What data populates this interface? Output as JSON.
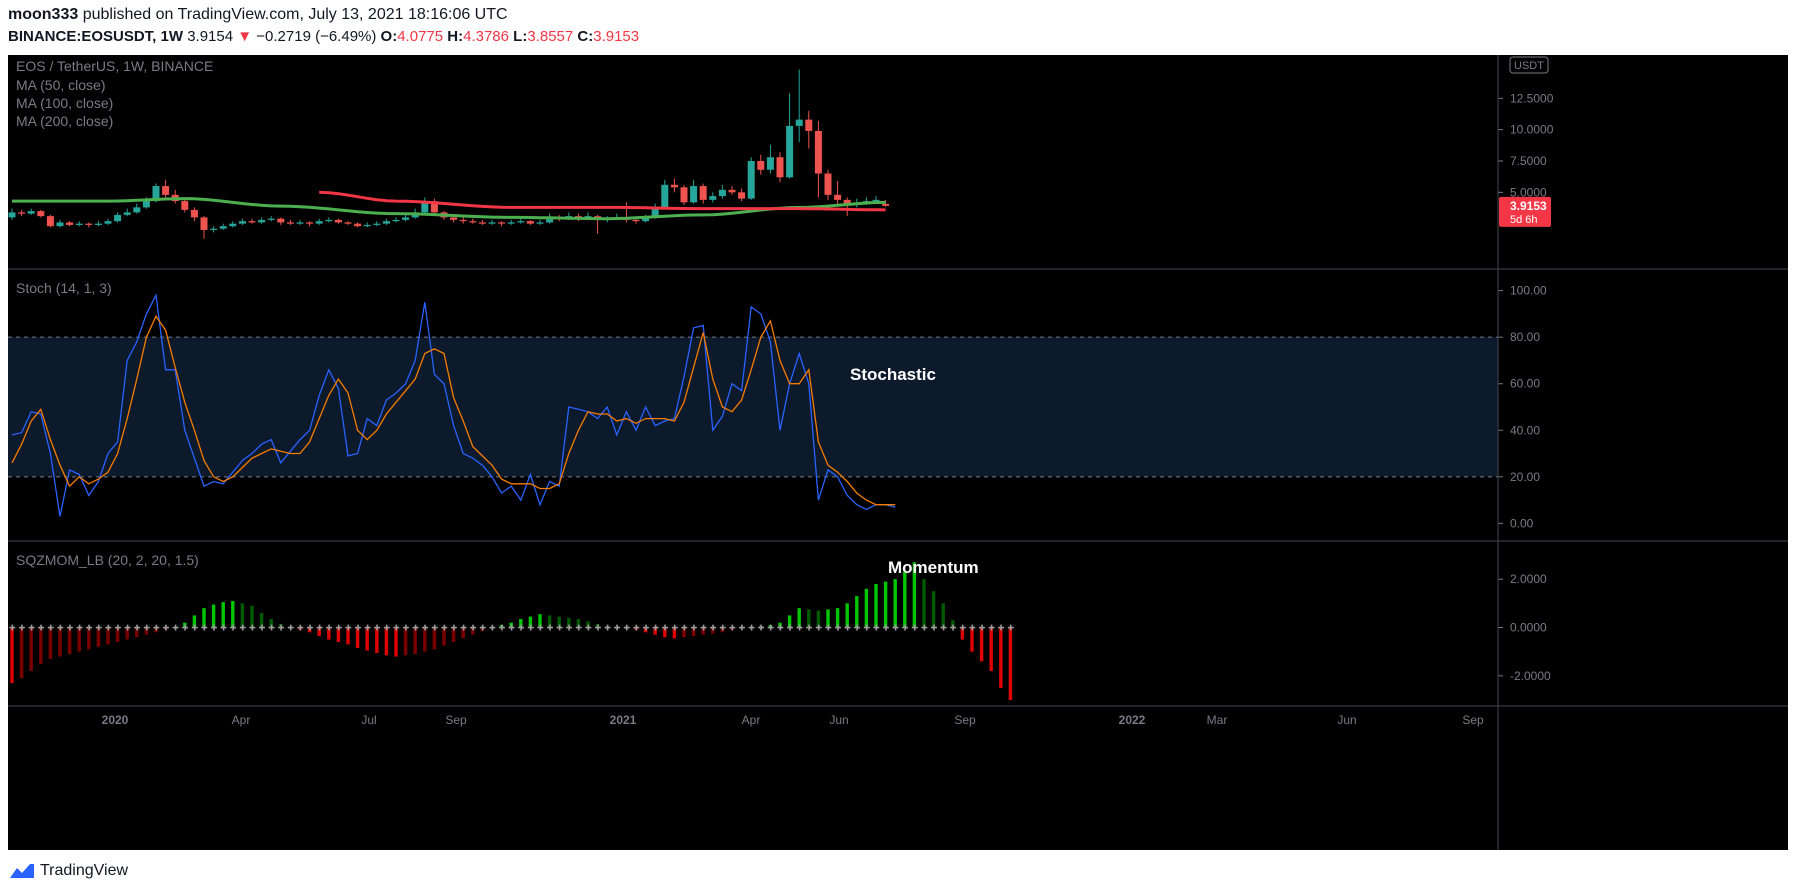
{
  "header": {
    "author": "moon333",
    "published_text": "published on TradingView.com, July 13, 2021 18:16:06 UTC",
    "symbol": "BINANCE:EOSUSDT, 1W",
    "last": "3.9154",
    "change_arrow": "▼",
    "change": "−0.2719 (−6.49%)",
    "o_label": "O:",
    "o": "4.0775",
    "h_label": "H:",
    "h": "4.3786",
    "l_label": "L:",
    "l": "3.8557",
    "c_label": "C:",
    "c": "3.9153"
  },
  "footer": {
    "brand": "TradingView",
    "logo_icon": "tradingview-logo-icon"
  },
  "colors": {
    "bg": "#000000",
    "up": "#26a69a",
    "down": "#ef5350",
    "ma_green": "#4caf50",
    "ma_red": "#f23645",
    "stoch_k": "#2962ff",
    "stoch_d": "#f57c00",
    "mom_bright_green": "#00c800",
    "mom_dark_green": "#005a00",
    "mom_bright_red": "#e00000",
    "mom_dark_red": "#7a0000"
  },
  "chart_data": [
    {
      "type": "candlestick",
      "title": "EOS / TetherUS, 1W, BINANCE",
      "legend": [
        "MA (50, close)",
        "MA (100, close)",
        "MA (200, close)"
      ],
      "currency_badge": "USDT",
      "ylim": [
        0,
        15
      ],
      "y_ticks": [
        "12.5000",
        "10.0000",
        "7.5000",
        "5.0000"
      ],
      "price_label": "3.9153",
      "countdown_label": "5d 6h",
      "candles": [
        [
          3.0,
          3.4,
          3.7,
          2.8
        ],
        [
          3.4,
          3.3,
          3.6,
          3.1
        ],
        [
          3.3,
          3.5,
          3.7,
          3.2
        ],
        [
          3.5,
          3.1,
          3.6,
          3.0
        ],
        [
          3.1,
          2.3,
          3.2,
          2.2
        ],
        [
          2.3,
          2.6,
          2.8,
          2.2
        ],
        [
          2.6,
          2.4,
          2.7,
          2.3
        ],
        [
          2.4,
          2.5,
          2.7,
          2.3
        ],
        [
          2.5,
          2.4,
          2.6,
          2.2
        ],
        [
          2.4,
          2.5,
          2.7,
          2.3
        ],
        [
          2.5,
          2.7,
          2.9,
          2.4
        ],
        [
          2.7,
          3.2,
          3.4,
          2.6
        ],
        [
          3.2,
          3.4,
          3.7,
          3.1
        ],
        [
          3.4,
          3.8,
          4.1,
          3.3
        ],
        [
          3.8,
          4.3,
          4.6,
          3.7
        ],
        [
          4.3,
          5.5,
          5.7,
          4.2
        ],
        [
          5.5,
          4.8,
          6.0,
          4.5
        ],
        [
          4.8,
          4.3,
          5.2,
          4.1
        ],
        [
          4.3,
          3.6,
          4.6,
          3.4
        ],
        [
          3.6,
          3.0,
          3.8,
          2.7
        ],
        [
          3.0,
          2.0,
          3.1,
          1.3
        ],
        [
          2.0,
          2.1,
          2.3,
          1.8
        ],
        [
          2.1,
          2.3,
          2.5,
          2.0
        ],
        [
          2.3,
          2.5,
          2.7,
          2.2
        ],
        [
          2.5,
          2.7,
          2.9,
          2.4
        ],
        [
          2.7,
          2.6,
          2.9,
          2.5
        ],
        [
          2.6,
          2.8,
          3.0,
          2.5
        ],
        [
          2.8,
          2.9,
          3.1,
          2.7
        ],
        [
          2.9,
          2.6,
          3.0,
          2.4
        ],
        [
          2.6,
          2.5,
          2.8,
          2.4
        ],
        [
          2.5,
          2.6,
          2.8,
          2.4
        ],
        [
          2.6,
          2.5,
          2.7,
          2.3
        ],
        [
          2.5,
          2.7,
          2.9,
          2.4
        ],
        [
          2.7,
          2.8,
          3.0,
          2.6
        ],
        [
          2.8,
          2.6,
          2.9,
          2.5
        ],
        [
          2.6,
          2.5,
          2.7,
          2.4
        ],
        [
          2.5,
          2.3,
          2.6,
          2.2
        ],
        [
          2.3,
          2.4,
          2.6,
          2.2
        ],
        [
          2.4,
          2.5,
          2.7,
          2.3
        ],
        [
          2.5,
          2.7,
          2.9,
          2.4
        ],
        [
          2.7,
          2.8,
          3.0,
          2.6
        ],
        [
          2.8,
          3.0,
          3.3,
          2.7
        ],
        [
          3.0,
          3.4,
          3.7,
          2.9
        ],
        [
          3.4,
          4.3,
          4.6,
          3.3
        ],
        [
          4.3,
          3.4,
          4.5,
          3.1
        ],
        [
          3.4,
          3.0,
          3.5,
          2.8
        ],
        [
          3.0,
          2.8,
          3.2,
          2.6
        ],
        [
          2.8,
          2.7,
          3.0,
          2.5
        ],
        [
          2.7,
          2.6,
          2.9,
          2.5
        ],
        [
          2.6,
          2.5,
          2.8,
          2.4
        ],
        [
          2.5,
          2.6,
          2.8,
          2.4
        ],
        [
          2.6,
          2.5,
          2.7,
          2.3
        ],
        [
          2.5,
          2.6,
          2.8,
          2.4
        ],
        [
          2.6,
          2.7,
          2.9,
          2.5
        ],
        [
          2.7,
          2.5,
          2.8,
          2.4
        ],
        [
          2.5,
          2.6,
          2.8,
          2.4
        ],
        [
          2.6,
          3.0,
          3.3,
          2.5
        ],
        [
          3.0,
          2.9,
          3.2,
          2.7
        ],
        [
          2.9,
          3.1,
          3.4,
          2.8
        ],
        [
          3.1,
          2.9,
          3.3,
          2.7
        ],
        [
          2.9,
          3.1,
          3.4,
          2.8
        ],
        [
          3.1,
          2.8,
          3.2,
          1.7
        ],
        [
          2.8,
          2.9,
          3.1,
          2.6
        ],
        [
          2.9,
          3.0,
          3.3,
          2.8
        ],
        [
          3.0,
          2.8,
          4.2,
          2.6
        ],
        [
          2.8,
          2.7,
          3.0,
          2.5
        ],
        [
          2.7,
          3.0,
          3.2,
          2.6
        ],
        [
          3.0,
          3.8,
          4.1,
          2.9
        ],
        [
          3.8,
          5.6,
          6.0,
          3.7
        ],
        [
          5.6,
          5.4,
          6.1,
          5.0
        ],
        [
          5.4,
          4.2,
          5.6,
          4.0
        ],
        [
          4.2,
          5.5,
          6.0,
          4.1
        ],
        [
          5.5,
          4.4,
          5.7,
          4.1
        ],
        [
          4.4,
          4.7,
          5.0,
          4.2
        ],
        [
          4.7,
          5.2,
          5.6,
          4.5
        ],
        [
          5.2,
          5.0,
          5.5,
          4.8
        ],
        [
          5.0,
          4.5,
          5.3,
          4.3
        ],
        [
          4.5,
          7.5,
          7.8,
          4.4
        ],
        [
          7.5,
          6.8,
          8.0,
          6.4
        ],
        [
          6.8,
          7.8,
          8.8,
          6.5
        ],
        [
          7.8,
          6.2,
          8.2,
          5.8
        ],
        [
          6.2,
          10.3,
          12.9,
          6.1
        ],
        [
          10.3,
          10.8,
          14.8,
          9.0
        ],
        [
          10.8,
          9.9,
          11.5,
          8.5
        ],
        [
          9.9,
          6.5,
          10.7,
          4.6
        ],
        [
          6.5,
          4.8,
          6.8,
          4.4
        ],
        [
          4.8,
          4.4,
          5.9,
          4.0
        ],
        [
          4.4,
          4.0,
          4.6,
          3.1
        ],
        [
          4.0,
          4.1,
          4.5,
          3.8
        ],
        [
          4.1,
          4.3,
          4.6,
          4.0
        ],
        [
          4.3,
          4.4,
          4.7,
          4.1
        ],
        [
          4.08,
          3.92,
          4.38,
          3.86
        ]
      ],
      "ma_green_sample": [
        [
          0,
          4.3
        ],
        [
          10,
          4.3
        ],
        [
          18,
          4.5
        ],
        [
          28,
          3.9
        ],
        [
          40,
          3.3
        ],
        [
          52,
          3.0
        ],
        [
          62,
          2.9
        ],
        [
          72,
          3.2
        ],
        [
          82,
          3.8
        ],
        [
          91,
          4.2
        ]
      ],
      "ma_red_sample": [
        [
          32,
          5.0
        ],
        [
          40,
          4.3
        ],
        [
          52,
          3.8
        ],
        [
          62,
          3.8
        ],
        [
          72,
          3.7
        ],
        [
          82,
          3.7
        ],
        [
          91,
          3.6
        ]
      ]
    },
    {
      "type": "line",
      "title": "Stoch (14, 1, 3)",
      "annotation": "Stochastic",
      "ylim": [
        -5,
        105
      ],
      "y_ticks": [
        "100.00",
        "80.00",
        "60.00",
        "40.00",
        "20.00",
        "0.00"
      ],
      "bands": [
        20,
        80
      ],
      "series": [
        {
          "values": [
            38,
            39,
            48,
            47,
            30,
            3,
            23,
            21,
            12,
            18,
            30,
            35,
            70,
            78,
            90,
            98,
            66,
            66,
            40,
            28,
            16,
            18,
            17,
            22,
            27,
            30,
            34,
            36,
            26,
            31,
            36,
            40,
            55,
            66,
            58,
            29,
            30,
            45,
            42,
            53,
            56,
            60,
            70,
            95,
            64,
            60,
            42,
            30,
            28,
            25,
            20,
            13,
            16,
            10,
            21,
            8,
            18,
            16,
            50,
            49,
            48,
            45,
            50,
            38,
            48,
            40,
            50,
            42,
            44,
            45,
            63,
            84,
            85,
            40,
            46,
            60,
            57,
            93,
            90,
            78,
            40,
            60,
            73,
            60,
            10,
            23,
            20,
            12,
            8,
            6,
            8,
            8,
            7
          ]
        },
        {
          "values": [
            26,
            34,
            44,
            49,
            36,
            25,
            16,
            20,
            17,
            19,
            22,
            30,
            45,
            62,
            80,
            89,
            83,
            67,
            52,
            40,
            27,
            20,
            18,
            20,
            24,
            28,
            30,
            32,
            31,
            30,
            30,
            35,
            45,
            55,
            62,
            56,
            40,
            36,
            40,
            47,
            52,
            57,
            62,
            73,
            75,
            73,
            54,
            44,
            33,
            29,
            25,
            19,
            17,
            17,
            17,
            15,
            15,
            17,
            30,
            40,
            48,
            47,
            47,
            44,
            45,
            43,
            45,
            45,
            45,
            44,
            52,
            67,
            82,
            62,
            50,
            48,
            53,
            66,
            80,
            87,
            70,
            60,
            60,
            66,
            35,
            25,
            22,
            18,
            13,
            10,
            8,
            8,
            8
          ]
        }
      ]
    },
    {
      "type": "bar",
      "title": "SQZMOM_LB (20, 2, 20, 1.5)",
      "annotation": "Momentum",
      "ylim": [
        -3,
        3
      ],
      "y_ticks": [
        "2.0000",
        "0.0000",
        "-2.0000"
      ],
      "values": [
        -2.3,
        -2.1,
        -1.8,
        -1.5,
        -1.3,
        -1.2,
        -1.1,
        -1.0,
        -0.9,
        -0.8,
        -0.7,
        -0.6,
        -0.5,
        -0.4,
        -0.3,
        -0.2,
        -0.1,
        0.0,
        0.2,
        0.5,
        0.8,
        0.95,
        1.05,
        1.1,
        1.0,
        0.9,
        0.6,
        0.35,
        0.15,
        0.0,
        -0.1,
        -0.2,
        -0.35,
        -0.5,
        -0.6,
        -0.7,
        -0.85,
        -0.95,
        -1.05,
        -1.15,
        -1.2,
        -1.15,
        -1.1,
        -1.0,
        -0.9,
        -0.75,
        -0.6,
        -0.45,
        -0.3,
        -0.15,
        0.0,
        0.1,
        0.2,
        0.35,
        0.45,
        0.55,
        0.5,
        0.45,
        0.4,
        0.35,
        0.25,
        0.15,
        0.05,
        0.0,
        -0.05,
        -0.1,
        -0.2,
        -0.3,
        -0.4,
        -0.45,
        -0.4,
        -0.35,
        -0.3,
        -0.25,
        -0.2,
        -0.1,
        -0.05,
        0.0,
        0.05,
        0.1,
        0.2,
        0.5,
        0.8,
        0.75,
        0.7,
        0.75,
        0.8,
        1.0,
        1.3,
        1.6,
        1.8,
        1.9,
        2.0,
        2.3,
        2.7,
        2.0,
        1.5,
        1.0,
        0.3,
        -0.5,
        -1.0,
        -1.4,
        -1.8,
        -2.5,
        -3.0
      ],
      "note": "bright green = rising positive, dark green = falling positive, bright red = falling negative, dark red = rising negative"
    }
  ],
  "x_axis": {
    "ticks": [
      "2020",
      "Apr",
      "Jul",
      "Sep",
      "2021",
      "Apr",
      "Jun",
      "Sep",
      "2022",
      "Mar",
      "Jun",
      "Sep"
    ],
    "bold": [
      "2020",
      "2021",
      "2022"
    ]
  }
}
